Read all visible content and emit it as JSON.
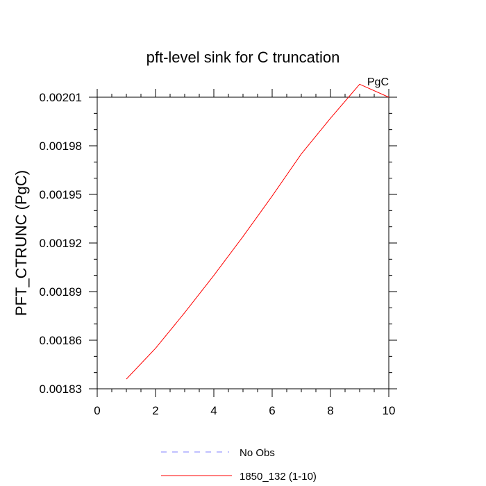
{
  "chart_data": {
    "type": "line",
    "title": "pft-level sink for C truncation",
    "units_label": "PgC",
    "xlabel": "",
    "ylabel": "PFT_CTRUNC  (PgC)",
    "xlim": [
      0,
      10
    ],
    "ylim": [
      0.00183,
      0.00201
    ],
    "x_ticks": [
      0,
      2,
      4,
      6,
      8,
      10
    ],
    "x_tick_labels": [
      "0",
      "2",
      "4",
      "6",
      "8",
      "10"
    ],
    "y_ticks": [
      0.00183,
      0.00186,
      0.00189,
      0.00192,
      0.00195,
      0.00198,
      0.00201
    ],
    "y_tick_labels": [
      "0.00183",
      "0.00186",
      "0.00189",
      "0.00192",
      "0.00195",
      "0.00198",
      "0.00201"
    ],
    "grid": false,
    "legend_position": "bottom",
    "series": [
      {
        "name": "No Obs",
        "color": "#8080ff",
        "dash": "dashed",
        "x": [],
        "y": []
      },
      {
        "name": "1850_132 (1-10)",
        "color": "#ff0000",
        "dash": "solid",
        "x": [
          1,
          2,
          3,
          4,
          5,
          6,
          7,
          8,
          9,
          10
        ],
        "y": [
          0.001836,
          0.001855,
          0.001877,
          0.0019,
          0.001924,
          0.001949,
          0.001975,
          0.001997,
          0.002018,
          0.00201
        ]
      }
    ]
  }
}
